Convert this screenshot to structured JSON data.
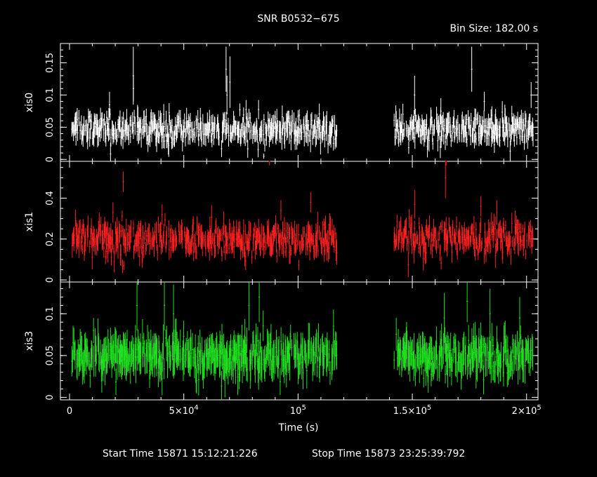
{
  "header": {
    "title": "SNR B0532−675",
    "bin_size": "Bin Size: 182.00 s"
  },
  "footer": {
    "start_time": "Start Time 15871 15:12:21:226",
    "stop_time": "Stop Time 15873 23:25:39:792"
  },
  "colors": {
    "background": "#000000",
    "axes": "#ffffff",
    "xis0": "#ffffff",
    "xis1": "#ff2020",
    "xis3": "#20e020"
  },
  "chart_data": {
    "type": "scatter",
    "title": "SNR B0532−675",
    "xlabel": "Time (s)",
    "xlim": [
      -4000,
      205000
    ],
    "x_ticks": [
      {
        "value": 0,
        "label": "0"
      },
      {
        "value": 50000,
        "label": "5×10⁴"
      },
      {
        "value": 100000,
        "label": "10⁵"
      },
      {
        "value": 150000,
        "label": "1.5×10⁵"
      },
      {
        "value": 200000,
        "label": "2×10⁵"
      }
    ],
    "gap": [
      117000,
      142000
    ],
    "panels": [
      {
        "name": "xis0",
        "ylabel": "xis0",
        "color": "#ffffff",
        "ylim": [
          -0.003,
          0.18
        ],
        "y_ticks": [
          {
            "value": 0,
            "label": "0"
          },
          {
            "value": 0.05,
            "label": "0.05"
          },
          {
            "value": 0.1,
            "label": "0.1"
          },
          {
            "value": 0.15,
            "label": "0.15"
          }
        ],
        "minor_step": 0.01,
        "mean": 0.047,
        "scatter": 0.011,
        "err": [
          0.008,
          0.018
        ],
        "spikes": [
          {
            "x": 27900,
            "y": 0.13,
            "err": 0.045
          },
          {
            "x": 27950,
            "y": 0.11,
            "err": 0.02
          },
          {
            "x": 68500,
            "y": 0.14,
            "err": 0.035
          },
          {
            "x": 70200,
            "y": 0.12,
            "err": 0.04
          },
          {
            "x": 68900,
            "y": 0.1,
            "err": 0.03
          },
          {
            "x": 85000,
            "y": 0.005,
            "err": 0.004
          },
          {
            "x": 151000,
            "y": 0.1,
            "err": 0.03
          },
          {
            "x": 162500,
            "y": 0.075,
            "err": 0.02
          },
          {
            "x": 176000,
            "y": 0.14,
            "err": 0.035
          },
          {
            "x": 181500,
            "y": 0.09,
            "err": 0.015
          },
          {
            "x": 190500,
            "y": 0.07,
            "err": 0.015
          },
          {
            "x": 202000,
            "y": 0.1,
            "err": 0.02
          },
          {
            "x": 17500,
            "y": 0.085,
            "err": 0.02
          }
        ]
      },
      {
        "name": "xis1",
        "ylabel": "xis1",
        "color": "#ff2020",
        "ylim": [
          -0.01,
          0.58
        ],
        "y_ticks": [
          {
            "value": 0,
            "label": "0"
          },
          {
            "value": 0.2,
            "label": "0.2"
          },
          {
            "value": 0.4,
            "label": "0.4"
          }
        ],
        "minor_step": 0.05,
        "mean": 0.2,
        "scatter": 0.04,
        "err": [
          0.02,
          0.06
        ],
        "spikes": [
          {
            "x": 23500,
            "y": 0.48,
            "err": 0.05
          },
          {
            "x": 87500,
            "y": 0.58,
            "err": 0.02
          },
          {
            "x": 105500,
            "y": 0.38,
            "err": 0.05
          },
          {
            "x": 151000,
            "y": 0.37,
            "err": 0.07
          },
          {
            "x": 164500,
            "y": 0.5,
            "err": 0.1
          },
          {
            "x": 164800,
            "y": 0.58,
            "err": 0.02
          },
          {
            "x": 180000,
            "y": 0.36,
            "err": 0.05
          },
          {
            "x": 187000,
            "y": 0.33,
            "err": 0.06
          },
          {
            "x": 195000,
            "y": 0.29,
            "err": 0.05
          },
          {
            "x": 40500,
            "y": 0.32,
            "err": 0.05
          },
          {
            "x": 19000,
            "y": 0.33,
            "err": 0.05
          },
          {
            "x": 92500,
            "y": 0.34,
            "err": 0.05
          }
        ]
      },
      {
        "name": "xis3",
        "ylabel": "xis3",
        "color": "#20e020",
        "ylim": [
          -0.003,
          0.138
        ],
        "y_ticks": [
          {
            "value": 0,
            "label": "0"
          },
          {
            "value": 0.05,
            "label": "0.05"
          },
          {
            "value": 0.1,
            "label": "0.1"
          }
        ],
        "minor_step": 0.01,
        "mean": 0.05,
        "scatter": 0.011,
        "err": [
          0.01,
          0.022
        ],
        "spikes": [
          {
            "x": 29500,
            "y": 0.11,
            "err": 0.03
          },
          {
            "x": 41500,
            "y": 0.11,
            "err": 0.03
          },
          {
            "x": 45500,
            "y": 0.1,
            "err": 0.035
          },
          {
            "x": 78500,
            "y": 0.11,
            "err": 0.03
          },
          {
            "x": 83000,
            "y": 0.12,
            "err": 0.03
          },
          {
            "x": 68000,
            "y": 0.02,
            "err": 0.02
          },
          {
            "x": 164000,
            "y": 0.095,
            "err": 0.03
          },
          {
            "x": 174000,
            "y": 0.115,
            "err": 0.025
          },
          {
            "x": 184000,
            "y": 0.1,
            "err": 0.03
          },
          {
            "x": 197000,
            "y": 0.095,
            "err": 0.025
          },
          {
            "x": 115500,
            "y": 0.085,
            "err": 0.02
          },
          {
            "x": 10500,
            "y": 0.08,
            "err": 0.015
          }
        ]
      }
    ]
  }
}
